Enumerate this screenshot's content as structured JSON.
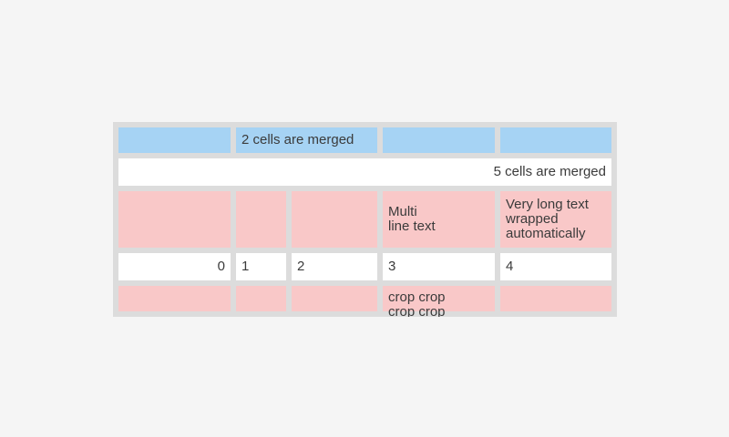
{
  "colors": {
    "page_bg": "#f5f5f5",
    "table_bg": "#dcdcdc",
    "header_cell": "#a6d3f4",
    "pink_cell": "#f9c8c8",
    "white_cell": "#ffffff",
    "text": "#3b3b3b"
  },
  "table": {
    "row1": {
      "merged_label": "2 cells are merged"
    },
    "row2": {
      "merged_label": "5 cells are merged"
    },
    "row3": {
      "col4": "Multi\nline text",
      "col5": "Very long text wrapped automatically"
    },
    "row4": {
      "col1": "0",
      "col2": "1",
      "col3": "2",
      "col4": "3",
      "col5": "4"
    },
    "row5": {
      "col4": "crop crop crop crop"
    }
  }
}
